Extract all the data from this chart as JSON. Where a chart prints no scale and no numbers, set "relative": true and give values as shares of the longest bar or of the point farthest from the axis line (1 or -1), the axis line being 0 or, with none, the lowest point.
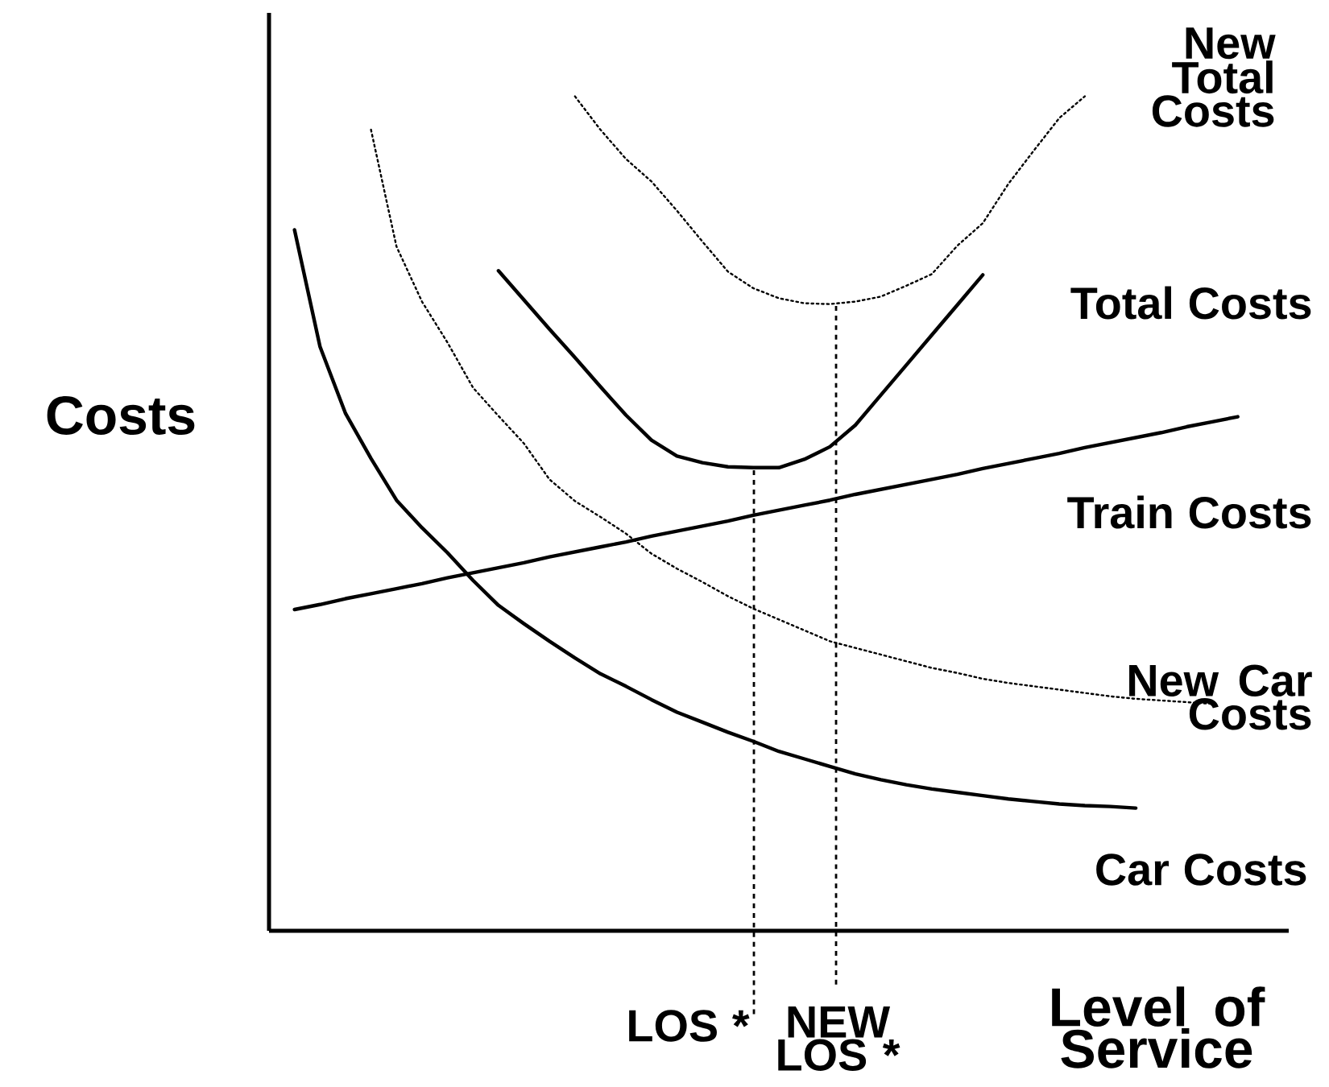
{
  "chart_data": {
    "type": "line",
    "relative": true,
    "ylabel": "Costs",
    "xlabel": "Level of Service",
    "marker": "none",
    "categories": [
      null,
      null,
      null,
      null,
      null,
      null,
      null,
      null,
      null,
      null,
      null,
      null,
      null,
      null,
      null,
      null,
      null,
      null,
      null,
      null,
      null,
      null,
      null,
      null,
      null,
      null,
      null,
      null,
      null,
      null,
      null,
      null,
      null,
      null,
      null,
      null,
      null,
      null,
      null,
      null,
      null
    ],
    "series": [
      {
        "name": "Car Costs",
        "color": "#000000",
        "line_style": "solid",
        "values": [
          null,
          0.84,
          0.7,
          0.62,
          0.566,
          0.516,
          0.483,
          0.453,
          0.42,
          0.39,
          0.368,
          0.347,
          0.327,
          0.308,
          0.293,
          0.277,
          0.262,
          0.25,
          0.238,
          0.227,
          0.215,
          0.206,
          0.197,
          0.188,
          0.181,
          0.175,
          0.17,
          0.166,
          0.162,
          0.158,
          0.155,
          0.152,
          0.15,
          0.149,
          0.147,
          null,
          null,
          null,
          null,
          null,
          null
        ]
      },
      {
        "name": "Train Costs",
        "color": "#000000",
        "line_style": "solid",
        "values": [
          null,
          0.385,
          0.391,
          0.398,
          0.404,
          0.41,
          0.416,
          0.423,
          0.429,
          0.435,
          0.441,
          0.448,
          0.454,
          0.46,
          0.466,
          0.473,
          0.479,
          0.485,
          0.491,
          0.498,
          0.504,
          0.51,
          0.516,
          0.523,
          0.529,
          0.535,
          0.541,
          0.547,
          0.554,
          0.56,
          0.566,
          0.572,
          0.579,
          0.585,
          0.591,
          0.597,
          0.604,
          0.61,
          0.616,
          null,
          null
        ]
      },
      {
        "name": "Total Costs",
        "color": "#000000",
        "line_style": "solid",
        "values": [
          null,
          null,
          null,
          null,
          null,
          null,
          null,
          null,
          null,
          0.791,
          0.756,
          0.721,
          0.687,
          0.652,
          0.618,
          0.588,
          0.569,
          0.561,
          0.556,
          0.555,
          0.555,
          0.565,
          0.58,
          0.606,
          0.642,
          0.678,
          0.714,
          0.75,
          0.786,
          null,
          null,
          null,
          null,
          null,
          null,
          null,
          null,
          null,
          null,
          null,
          null
        ]
      },
      {
        "name": "New Car Costs",
        "color": "#000000",
        "line_style": "dotted",
        "values": [
          null,
          null,
          null,
          null,
          0.96,
          0.82,
          0.754,
          0.705,
          0.651,
          0.617,
          0.584,
          0.541,
          0.515,
          0.496,
          0.476,
          0.452,
          0.434,
          0.418,
          0.401,
          0.386,
          0.373,
          0.36,
          0.347,
          0.339,
          0.331,
          0.323,
          0.315,
          0.309,
          0.302,
          0.297,
          0.293,
          0.289,
          0.285,
          0.281,
          0.278,
          0.276,
          0.274,
          0.272,
          null,
          null,
          null
        ]
      },
      {
        "name": "New Total Costs",
        "color": "#000000",
        "line_style": "dotted",
        "values": [
          null,
          null,
          null,
          null,
          null,
          null,
          null,
          null,
          null,
          null,
          null,
          null,
          1.0,
          0.96,
          0.925,
          0.898,
          0.863,
          0.826,
          0.79,
          0.77,
          0.758,
          0.752,
          0.751,
          0.754,
          0.76,
          0.773,
          0.787,
          0.821,
          0.848,
          0.895,
          0.935,
          0.974,
          1.0,
          null,
          null,
          null,
          null,
          null,
          null,
          null,
          null
        ]
      }
    ],
    "annotations": [
      "LOS *",
      "NEW LOS *"
    ]
  }
}
